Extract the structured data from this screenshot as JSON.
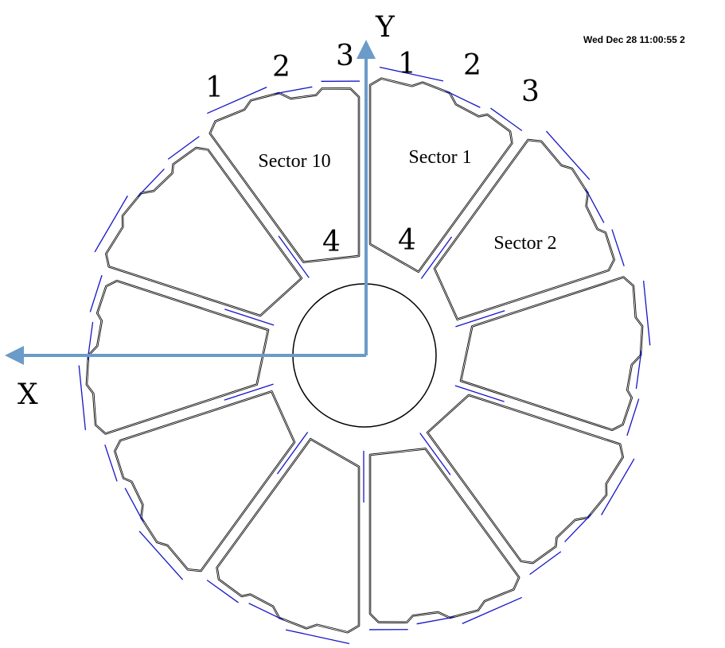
{
  "timestamp": "Wed Dec 28 11:00:55 2",
  "axes": {
    "y": "Y",
    "x": "X"
  },
  "sectors": [
    {
      "label": "Sector 1",
      "corners": [
        "1",
        "2",
        "3",
        "4"
      ]
    },
    {
      "label": "Sector 2"
    },
    {
      "label": "Sector 10",
      "corners": [
        "1",
        "2",
        "3",
        "4"
      ]
    }
  ]
}
